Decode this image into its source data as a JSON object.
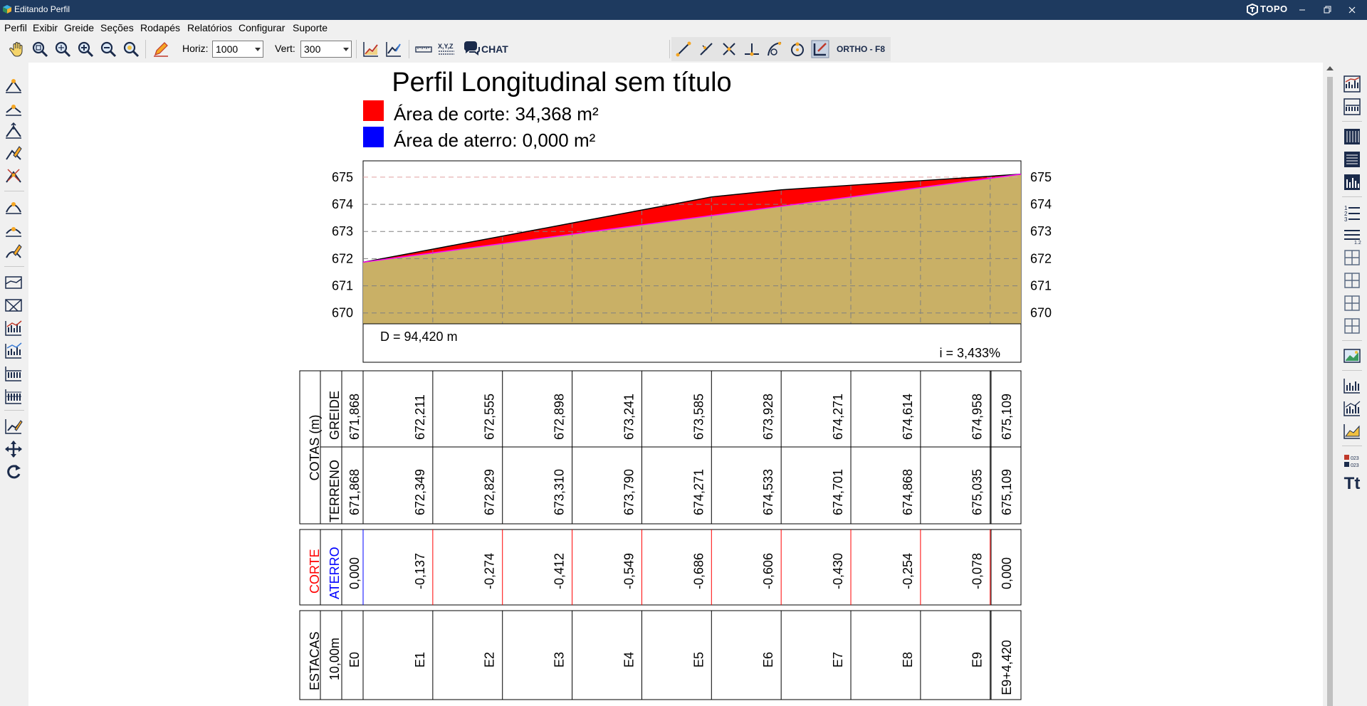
{
  "window": {
    "title": "Editando Perfil",
    "brand": "TOPO",
    "controls": [
      "minimize-icon",
      "restore-icon",
      "close-icon"
    ]
  },
  "menu": {
    "items": [
      "Perfil",
      "Exibir",
      "Greide",
      "Seções",
      "Rodapés",
      "Relatórios",
      "Configurar",
      "Suporte"
    ]
  },
  "toolbar": {
    "horiz_label": "Horiz:",
    "horiz_value": "1000",
    "vert_label": "Vert:",
    "vert_value": "300",
    "chat_label": "CHAT",
    "ortho_label": "ORTHO - F8",
    "icons": [
      "pan-hand-icon",
      "zoom-window-icon",
      "zoom-extents-icon",
      "zoom-in-icon",
      "zoom-out-icon",
      "zoom-all-icon",
      "edit-pen-icon",
      "profile-chart-icon",
      "greide-edit-icon",
      "ruler-icon",
      "xyz-icon",
      "chat-icon",
      "line-tool-icon",
      "extend-tool-icon",
      "cross-tool-icon",
      "perpendicular-tool-icon",
      "curve-tool-icon",
      "circle-tool-icon",
      "ortho-icon"
    ],
    "accent": "#1b2b4b"
  },
  "profile": {
    "title": "Perfil Longitudinal sem título",
    "legend": [
      {
        "label": "Área de corte: 34,368 m²",
        "color": "#ff0000"
      },
      {
        "label": "Área de aterro: 0,000 m²",
        "color": "#0000ff"
      }
    ],
    "y_ticks": [
      "675",
      "674",
      "673",
      "672",
      "671",
      "670"
    ],
    "distance": "D = 94,420 m",
    "slope": "i = 3,433%",
    "colors": {
      "ground": "#c9b066",
      "cut": "#ff0000",
      "fill": "#0000ff",
      "grade": "#ff00ff"
    }
  },
  "chart_data": {
    "type": "area",
    "title": "Perfil Longitudinal sem título",
    "x": [
      0,
      10,
      20,
      30,
      40,
      50,
      60,
      70,
      80,
      90,
      94.42
    ],
    "series": [
      {
        "name": "GREIDE",
        "values": [
          671.868,
          672.211,
          672.555,
          672.898,
          673.241,
          673.585,
          673.928,
          674.271,
          674.614,
          674.958,
          675.109
        ]
      },
      {
        "name": "TERRENO",
        "values": [
          671.868,
          672.349,
          672.829,
          673.31,
          673.79,
          674.271,
          674.533,
          674.701,
          674.868,
          675.035,
          675.109
        ]
      }
    ],
    "ylim": [
      669.6,
      675.6
    ],
    "grid": true
  },
  "table": {
    "cotas_label": "COTAS (m)",
    "greide_label": "GREIDE",
    "terreno_label": "TERRENO",
    "corte_label": "CORTE",
    "aterro_label": "ATERRO",
    "estacas_label": "ESTACAS",
    "estacas_spacing": "10,00m",
    "greide": [
      "671,868",
      "672,211",
      "672,555",
      "672,898",
      "673,241",
      "673,585",
      "673,928",
      "674,271",
      "674,614",
      "674,958",
      "675,109"
    ],
    "terreno": [
      "671,868",
      "672,349",
      "672,829",
      "673,310",
      "673,790",
      "674,271",
      "674,533",
      "674,701",
      "674,868",
      "675,035",
      "675,109"
    ],
    "corte_aterro": [
      "0,000",
      "-0,137",
      "-0,274",
      "-0,412",
      "-0,549",
      "-0,686",
      "-0,606",
      "-0,430",
      "-0,254",
      "-0,078",
      "0,000"
    ],
    "estacas": [
      "E0",
      "E1",
      "E2",
      "E3",
      "E4",
      "E5",
      "E6",
      "E7",
      "E8",
      "E9",
      "E9+4,420"
    ]
  },
  "right_toolbar": {
    "icons": [
      "chart-icon-1",
      "chart-icon-2",
      "vertical-lines-icon",
      "horizontal-lines-icon",
      "bar-grid-icon",
      "list-numbered-icon",
      "list-icon",
      "grid-icon-1",
      "grid-icon-2",
      "grid-icon-3",
      "grid-icon-4",
      "image-chart-icon",
      "chart-icon-3",
      "chart-icon-4",
      "chart-icon-5",
      "legend-icon",
      "text-size-icon"
    ],
    "text_size_label": "Tt"
  },
  "left_toolbar": {
    "icons": [
      "insert-vertex-icon",
      "insert-vertex-below-icon",
      "move-vertex-icon",
      "edit-vertex-icon",
      "delete-vertex-icon",
      "insert-curve-icon",
      "insert-curve-below-icon",
      "edit-curve-icon",
      "profile-view-icon",
      "cross-section-icon",
      "chart-edit-icon-1",
      "chart-edit-icon-2",
      "chart-edit-icon-3",
      "chart-edit-icon-4",
      "chart-pen-icon",
      "move-arrows-icon",
      "rotate-icon"
    ]
  }
}
